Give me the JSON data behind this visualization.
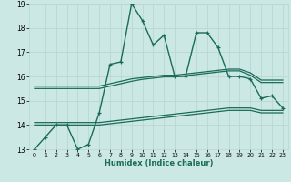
{
  "xlabel": "Humidex (Indice chaleur)",
  "bg_color": "#cce8e4",
  "grid_color": "#b8d8d0",
  "line_color": "#1a6b5a",
  "x_data": [
    0,
    1,
    2,
    3,
    4,
    5,
    6,
    7,
    8,
    9,
    10,
    11,
    12,
    13,
    14,
    15,
    16,
    17,
    18,
    19,
    20,
    21,
    22,
    23
  ],
  "main_line": [
    13.0,
    13.5,
    14.0,
    14.0,
    13.0,
    13.2,
    14.5,
    16.5,
    16.6,
    19.0,
    18.3,
    17.3,
    17.7,
    16.0,
    16.0,
    17.8,
    17.8,
    17.2,
    16.0,
    16.0,
    15.9,
    15.1,
    15.2,
    14.7
  ],
  "upper_line1": [
    15.6,
    15.6,
    15.6,
    15.6,
    15.6,
    15.6,
    15.6,
    15.7,
    15.8,
    15.9,
    15.95,
    16.0,
    16.05,
    16.05,
    16.1,
    16.15,
    16.2,
    16.25,
    16.3,
    16.3,
    16.15,
    15.85,
    15.85,
    15.85
  ],
  "upper_line2": [
    15.5,
    15.5,
    15.5,
    15.5,
    15.5,
    15.5,
    15.5,
    15.6,
    15.7,
    15.8,
    15.88,
    15.93,
    15.98,
    15.98,
    16.03,
    16.08,
    16.13,
    16.18,
    16.23,
    16.23,
    16.05,
    15.75,
    15.75,
    15.75
  ],
  "lower_line1": [
    14.1,
    14.1,
    14.1,
    14.1,
    14.1,
    14.1,
    14.1,
    14.15,
    14.2,
    14.25,
    14.3,
    14.35,
    14.4,
    14.45,
    14.5,
    14.55,
    14.6,
    14.65,
    14.7,
    14.7,
    14.7,
    14.6,
    14.6,
    14.6
  ],
  "lower_line2": [
    14.0,
    14.0,
    14.0,
    14.0,
    14.0,
    14.0,
    14.0,
    14.05,
    14.1,
    14.15,
    14.2,
    14.25,
    14.3,
    14.35,
    14.4,
    14.45,
    14.5,
    14.55,
    14.6,
    14.6,
    14.6,
    14.5,
    14.5,
    14.5
  ],
  "ylim": [
    13,
    19
  ],
  "yticks": [
    13,
    14,
    15,
    16,
    17,
    18,
    19
  ],
  "xticks": [
    0,
    1,
    2,
    3,
    4,
    5,
    6,
    7,
    8,
    9,
    10,
    11,
    12,
    13,
    14,
    15,
    16,
    17,
    18,
    19,
    20,
    21,
    22,
    23
  ]
}
